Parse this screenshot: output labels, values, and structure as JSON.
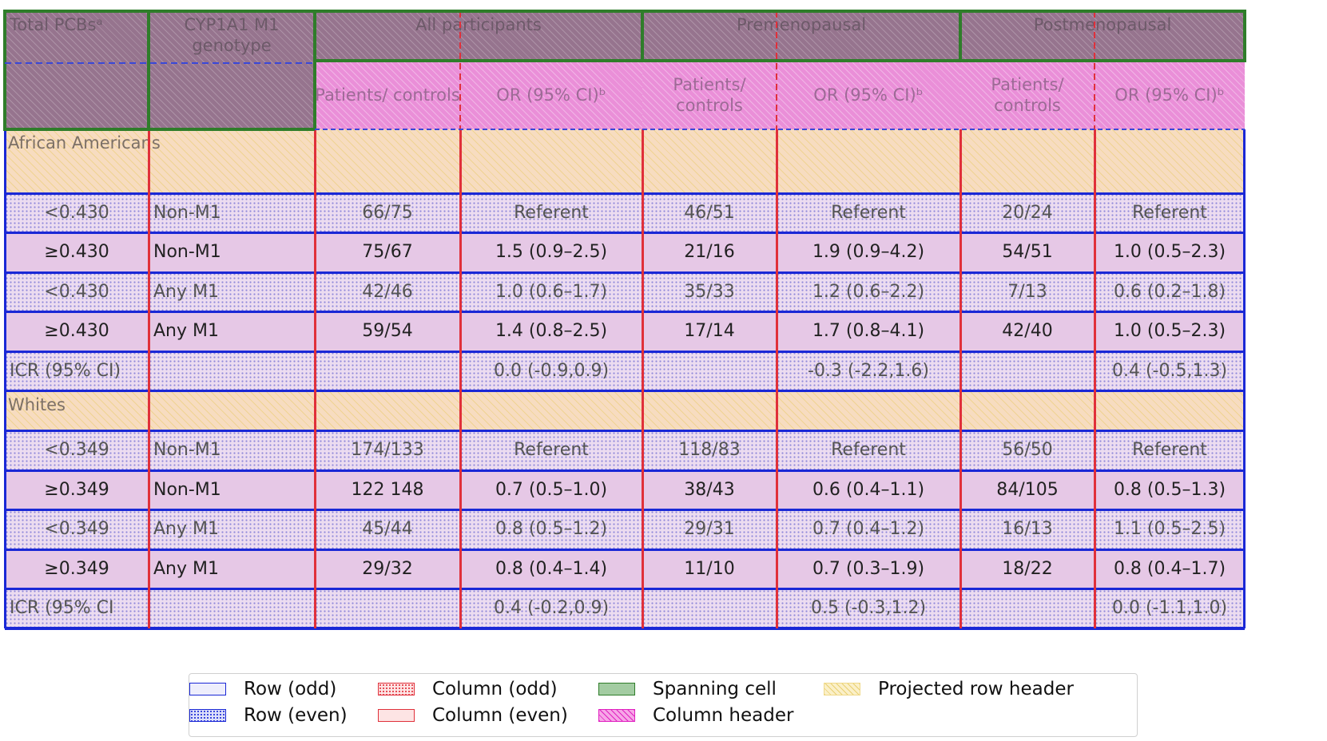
{
  "table": {
    "headers": {
      "total_pcbs": "Total PCBsᵃ",
      "genotype": "CYP1A1 M1 genotype",
      "groups": [
        "All participants",
        "Premenopausal",
        "Postmenopausal"
      ],
      "sub_patients": "Patients/ controls",
      "sub_or": "OR (95% CI)ᵇ"
    },
    "sections": [
      {
        "label": "African Americans",
        "rows": [
          [
            "<0.430",
            "Non-M1",
            "66/75",
            "Referent",
            "46/51",
            "Referent",
            "20/24",
            "Referent"
          ],
          [
            "≥0.430",
            "Non-M1",
            "75/67",
            "1.5 (0.9–2.5)",
            "21/16",
            "1.9 (0.9–4.2)",
            "54/51",
            "1.0 (0.5–2.3)"
          ],
          [
            "<0.430",
            "Any M1",
            "42/46",
            "1.0 (0.6–1.7)",
            "35/33",
            "1.2 (0.6–2.2)",
            "7/13",
            "0.6 (0.2–1.8)"
          ],
          [
            "≥0.430",
            "Any M1",
            "59/54",
            "1.4 (0.8–2.5)",
            "17/14",
            "1.7 (0.8–4.1)",
            "42/40",
            "1.0 (0.5–2.3)"
          ],
          [
            "ICR (95% CI)",
            "",
            "",
            "0.0 (-0.9,0.9)",
            "",
            "-0.3 (-2.2,1.6)",
            "",
            "0.4 (-0.5,1.3)"
          ]
        ]
      },
      {
        "label": "Whites",
        "rows": [
          [
            "<0.349",
            "Non-M1",
            "174/133",
            "Referent",
            "118/83",
            "Referent",
            "56/50",
            "Referent"
          ],
          [
            "≥0.349",
            "Non-M1",
            "122 148",
            "0.7 (0.5–1.0)",
            "38/43",
            "0.6 (0.4–1.1)",
            "84/105",
            "0.8 (0.5–1.3)"
          ],
          [
            "<0.349",
            "Any M1",
            "45/44",
            "0.8 (0.5–1.2)",
            "29/31",
            "0.7 (0.4–1.2)",
            "16/13",
            "1.1 (0.5–2.5)"
          ],
          [
            "≥0.349",
            "Any M1",
            "29/32",
            "0.8 (0.4–1.4)",
            "11/10",
            "0.7 (0.3–1.9)",
            "18/22",
            "0.8 (0.4–1.7)"
          ],
          [
            "ICR (95% CI",
            "",
            "",
            "0.4 (-0.2,0.9)",
            "",
            "0.5 (-0.3,1.2)",
            "",
            "0.0 (-1.1,1.0)"
          ]
        ]
      }
    ]
  },
  "legend": {
    "row_odd": "Row (odd)",
    "row_even": "Row (even)",
    "col_odd": "Column (odd)",
    "col_even": "Column (even)",
    "spanning": "Spanning cell",
    "col_header": "Column header",
    "proj_row_header": "Projected row header"
  },
  "colors": {
    "row_line": "#1a28d6",
    "column_line": "#e0303a",
    "spanning_line": "#2f7d2a",
    "column_header_fill": "#ea8fd8",
    "projected_header_fill": "#f7dcc0"
  }
}
